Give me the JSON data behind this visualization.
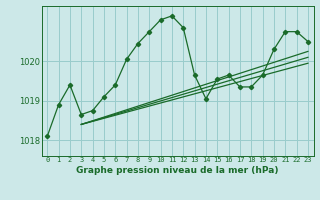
{
  "background_color": "#cce8e8",
  "plot_bg_color": "#cce8e8",
  "grid_color": "#99cccc",
  "line_color": "#1a6b2a",
  "title": "Graphe pression niveau de la mer (hPa)",
  "xlim": [
    -0.5,
    23.5
  ],
  "ylim": [
    1017.6,
    1021.4
  ],
  "yticks": [
    1018,
    1019,
    1020
  ],
  "xticks": [
    0,
    1,
    2,
    3,
    4,
    5,
    6,
    7,
    8,
    9,
    10,
    11,
    12,
    13,
    14,
    15,
    16,
    17,
    18,
    19,
    20,
    21,
    22,
    23
  ],
  "series0_x": [
    0,
    1,
    2,
    3,
    4,
    5,
    6,
    7,
    8,
    9,
    10,
    11,
    12,
    13,
    14,
    15,
    16,
    17,
    18,
    19,
    20,
    21,
    22,
    23
  ],
  "series0_y": [
    1018.1,
    1018.9,
    1019.4,
    1018.65,
    1018.75,
    1019.1,
    1019.4,
    1020.05,
    1020.45,
    1020.75,
    1021.05,
    1021.15,
    1020.85,
    1019.65,
    1019.05,
    1019.55,
    1019.65,
    1019.35,
    1019.35,
    1019.65,
    1020.3,
    1020.75,
    1020.75,
    1020.5
  ],
  "series1_x": [
    3,
    23
  ],
  "series1_y": [
    1018.4,
    1020.25
  ],
  "series2_x": [
    3,
    23
  ],
  "series2_y": [
    1018.4,
    1020.1
  ],
  "series3_x": [
    3,
    23
  ],
  "series3_y": [
    1018.4,
    1019.95
  ]
}
